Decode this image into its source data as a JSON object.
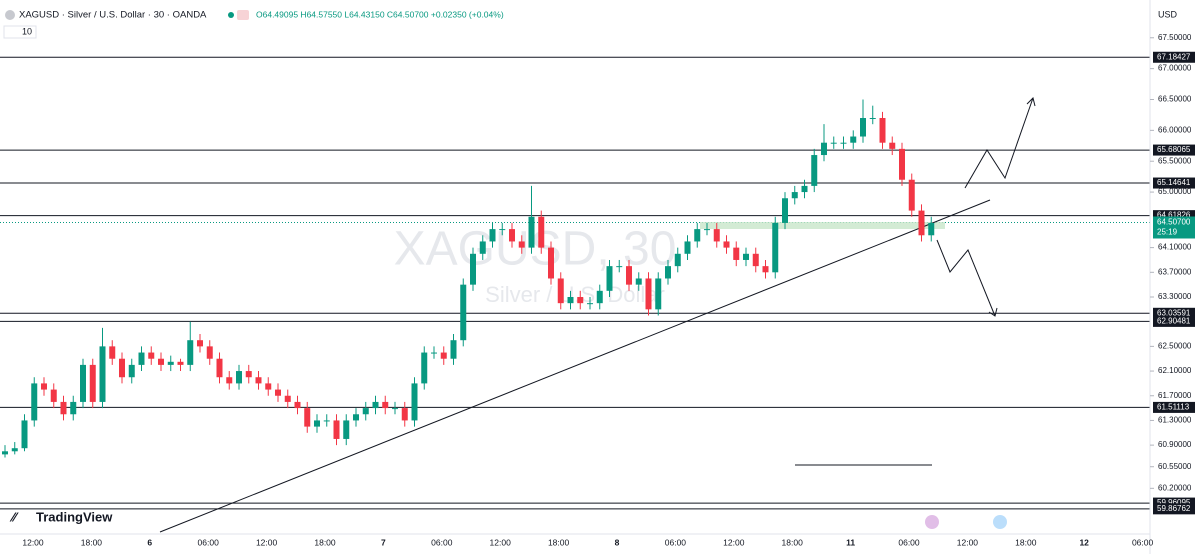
{
  "chart_data": {
    "type": "candlestick",
    "symbol": "XAGUSD · Silver / U.S. Dollar · 30 · OANDA",
    "ohlc_text": "O64.49095 H64.57550 L64.43150 C64.50700 +0.02350 (+0.04%)",
    "indicator": "10",
    "currency": "USD",
    "watermark": "XAGUSD, 30",
    "watermark_sub": "Silver / U.S. Dollar",
    "brand": "TradingView",
    "countdown": "25:19",
    "up_color": "#089981",
    "down_color": "#f23645",
    "ylim": [
      59.46,
      67.95
    ],
    "yticks": [
      {
        "value": 67.5,
        "label": "67.50000"
      },
      {
        "value": 67.0,
        "label": "67.00000"
      },
      {
        "value": 66.5,
        "label": "66.50000"
      },
      {
        "value": 66.0,
        "label": "66.00000"
      },
      {
        "value": 65.5,
        "label": "65.50000"
      },
      {
        "value": 65.0,
        "label": "65.00000"
      },
      {
        "value": 64.1,
        "label": "64.10000"
      },
      {
        "value": 63.7,
        "label": "63.70000"
      },
      {
        "value": 63.3,
        "label": "63.30000"
      },
      {
        "value": 62.5,
        "label": "62.50000"
      },
      {
        "value": 62.1,
        "label": "62.10000"
      },
      {
        "value": 61.7,
        "label": "61.70000"
      },
      {
        "value": 61.3,
        "label": "61.30000"
      },
      {
        "value": 60.9,
        "label": "60.90000"
      },
      {
        "value": 60.55,
        "label": "60.55000"
      },
      {
        "value": 60.2,
        "label": "60.20000"
      }
    ],
    "levels": [
      67.18427,
      65.68065,
      65.14641,
      64.61826,
      63.03591,
      62.90481,
      61.51113,
      59.96095,
      59.86762
    ],
    "last_price": {
      "value": 64.507,
      "label": "64.50700"
    },
    "xlabels": [
      "12:00",
      "18:00",
      "6",
      "06:00",
      "12:00",
      "18:00",
      "7",
      "06:00",
      "12:00",
      "18:00",
      "8",
      "06:00",
      "12:00",
      "18:00",
      "11",
      "06:00",
      "12:00",
      "18:00",
      "12",
      "06:00"
    ],
    "candles": [
      [
        60.75,
        60.9,
        60.7,
        60.8
      ],
      [
        60.8,
        60.95,
        60.75,
        60.85
      ],
      [
        60.85,
        61.4,
        60.8,
        61.3
      ],
      [
        61.3,
        62.0,
        61.2,
        61.9
      ],
      [
        61.9,
        62.0,
        61.7,
        61.8
      ],
      [
        61.8,
        61.9,
        61.5,
        61.6
      ],
      [
        61.6,
        61.7,
        61.3,
        61.4
      ],
      [
        61.4,
        61.7,
        61.3,
        61.6
      ],
      [
        61.6,
        62.3,
        61.5,
        62.2
      ],
      [
        62.2,
        62.3,
        61.5,
        61.6
      ],
      [
        61.6,
        62.8,
        61.5,
        62.5
      ],
      [
        62.5,
        62.6,
        62.2,
        62.3
      ],
      [
        62.3,
        62.4,
        61.9,
        62.0
      ],
      [
        62.0,
        62.3,
        61.9,
        62.2
      ],
      [
        62.2,
        62.5,
        62.1,
        62.4
      ],
      [
        62.4,
        62.5,
        62.2,
        62.3
      ],
      [
        62.3,
        62.4,
        62.1,
        62.2
      ],
      [
        62.2,
        62.35,
        62.1,
        62.25
      ],
      [
        62.25,
        62.3,
        62.1,
        62.2
      ],
      [
        62.2,
        62.9,
        62.1,
        62.6
      ],
      [
        62.6,
        62.7,
        62.4,
        62.5
      ],
      [
        62.5,
        62.6,
        62.2,
        62.3
      ],
      [
        62.3,
        62.4,
        61.9,
        62.0
      ],
      [
        62.0,
        62.1,
        61.8,
        61.9
      ],
      [
        61.9,
        62.2,
        61.8,
        62.1
      ],
      [
        62.1,
        62.2,
        61.9,
        62.0
      ],
      [
        62.0,
        62.1,
        61.8,
        61.9
      ],
      [
        61.9,
        62.0,
        61.7,
        61.8
      ],
      [
        61.8,
        61.9,
        61.6,
        61.7
      ],
      [
        61.7,
        61.8,
        61.5,
        61.6
      ],
      [
        61.6,
        61.7,
        61.4,
        61.5
      ],
      [
        61.5,
        61.6,
        61.1,
        61.2
      ],
      [
        61.2,
        61.4,
        61.1,
        61.3
      ],
      [
        61.3,
        61.4,
        61.2,
        61.3
      ],
      [
        61.3,
        61.4,
        60.9,
        61.0
      ],
      [
        61.0,
        61.4,
        60.9,
        61.3
      ],
      [
        61.3,
        61.5,
        61.2,
        61.4
      ],
      [
        61.4,
        61.6,
        61.3,
        61.5
      ],
      [
        61.5,
        61.7,
        61.4,
        61.6
      ],
      [
        61.6,
        61.7,
        61.4,
        61.5
      ],
      [
        61.5,
        61.6,
        61.4,
        61.5
      ],
      [
        61.5,
        61.6,
        61.2,
        61.3
      ],
      [
        61.3,
        62.0,
        61.2,
        61.9
      ],
      [
        61.9,
        62.5,
        61.8,
        62.4
      ],
      [
        62.4,
        62.5,
        62.3,
        62.4
      ],
      [
        62.4,
        62.5,
        62.2,
        62.3
      ],
      [
        62.3,
        62.7,
        62.2,
        62.6
      ],
      [
        62.6,
        63.6,
        62.5,
        63.5
      ],
      [
        63.5,
        64.1,
        63.4,
        64.0
      ],
      [
        64.0,
        64.3,
        63.9,
        64.2
      ],
      [
        64.2,
        64.5,
        64.1,
        64.4
      ],
      [
        64.4,
        64.5,
        64.3,
        64.4
      ],
      [
        64.4,
        64.5,
        64.1,
        64.2
      ],
      [
        64.2,
        64.3,
        64.0,
        64.1
      ],
      [
        64.1,
        65.1,
        64.0,
        64.6
      ],
      [
        64.6,
        64.7,
        64.0,
        64.1
      ],
      [
        64.1,
        64.2,
        63.5,
        63.6
      ],
      [
        63.6,
        63.7,
        63.1,
        63.2
      ],
      [
        63.2,
        63.4,
        63.1,
        63.3
      ],
      [
        63.3,
        63.4,
        63.1,
        63.2
      ],
      [
        63.2,
        63.3,
        63.1,
        63.2
      ],
      [
        63.2,
        63.5,
        63.1,
        63.4
      ],
      [
        63.4,
        63.9,
        63.3,
        63.8
      ],
      [
        63.8,
        63.9,
        63.7,
        63.8
      ],
      [
        63.8,
        63.9,
        63.4,
        63.5
      ],
      [
        63.5,
        63.7,
        63.4,
        63.6
      ],
      [
        63.6,
        63.7,
        63.0,
        63.1
      ],
      [
        63.1,
        63.7,
        63.0,
        63.6
      ],
      [
        63.6,
        63.9,
        63.5,
        63.8
      ],
      [
        63.8,
        64.1,
        63.7,
        64.0
      ],
      [
        64.0,
        64.3,
        63.9,
        64.2
      ],
      [
        64.2,
        64.5,
        64.1,
        64.4
      ],
      [
        64.4,
        64.5,
        64.3,
        64.4
      ],
      [
        64.4,
        64.5,
        64.1,
        64.2
      ],
      [
        64.2,
        64.3,
        64.0,
        64.1
      ],
      [
        64.1,
        64.2,
        63.8,
        63.9
      ],
      [
        63.9,
        64.1,
        63.8,
        64.0
      ],
      [
        64.0,
        64.1,
        63.7,
        63.8
      ],
      [
        63.8,
        63.9,
        63.6,
        63.7
      ],
      [
        63.7,
        64.6,
        63.6,
        64.5
      ],
      [
        64.5,
        65.0,
        64.4,
        64.9
      ],
      [
        64.9,
        65.1,
        64.8,
        65.0
      ],
      [
        65.0,
        65.2,
        64.9,
        65.1
      ],
      [
        65.1,
        65.7,
        65.0,
        65.6
      ],
      [
        65.6,
        66.1,
        65.5,
        65.8
      ],
      [
        65.8,
        65.9,
        65.7,
        65.8
      ],
      [
        65.8,
        65.9,
        65.7,
        65.8
      ],
      [
        65.8,
        66.0,
        65.7,
        65.9
      ],
      [
        65.9,
        66.5,
        65.8,
        66.2
      ],
      [
        66.2,
        66.4,
        66.1,
        66.2
      ],
      [
        66.2,
        66.3,
        65.7,
        65.8
      ],
      [
        65.8,
        65.9,
        65.6,
        65.7
      ],
      [
        65.7,
        65.8,
        65.1,
        65.2
      ],
      [
        65.2,
        65.3,
        64.6,
        64.7
      ],
      [
        64.7,
        64.8,
        64.2,
        64.3
      ],
      [
        64.3,
        64.6,
        64.2,
        64.5
      ]
    ]
  }
}
